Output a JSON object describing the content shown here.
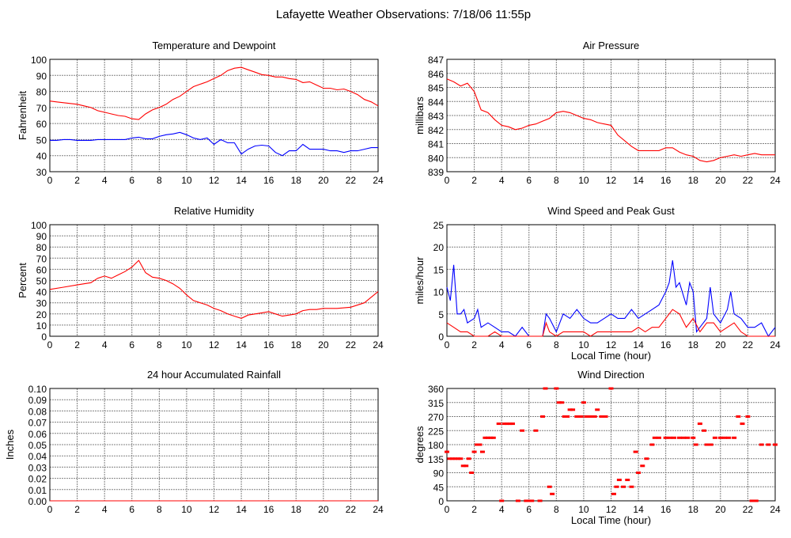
{
  "title": "Lafayette Weather Observations: 7/18/06 11:55p",
  "colors": {
    "red": "#ff0000",
    "blue": "#0000ff",
    "grid": "#808080"
  },
  "chart_data": [
    {
      "id": "temp",
      "type": "line",
      "title": "Temperature and Dewpoint",
      "xlabel": "",
      "ylabel": "Fahrenheit",
      "xlim": [
        0,
        24
      ],
      "ylim": [
        30,
        100
      ],
      "xticks": [
        0,
        2,
        4,
        6,
        8,
        10,
        12,
        14,
        16,
        18,
        20,
        22,
        24
      ],
      "yticks": [
        30,
        40,
        50,
        60,
        70,
        80,
        90,
        100
      ],
      "grid": true,
      "x": [
        0,
        0.5,
        1,
        1.5,
        2,
        2.5,
        3,
        3.5,
        4,
        4.5,
        5,
        5.5,
        6,
        6.5,
        7,
        7.5,
        8,
        8.5,
        9,
        9.5,
        10,
        10.5,
        11,
        11.5,
        12,
        12.5,
        13,
        13.5,
        14,
        14.5,
        15,
        15.5,
        16,
        16.5,
        17,
        17.5,
        18,
        18.5,
        19,
        19.5,
        20,
        20.5,
        21,
        21.5,
        22,
        22.5,
        23,
        23.5,
        24
      ],
      "series": [
        {
          "name": "Temperature",
          "color": "#ff0000",
          "values": [
            74,
            73.5,
            73,
            72.5,
            72,
            71,
            70,
            68,
            67,
            66,
            65,
            64.5,
            63,
            62.5,
            66,
            68.5,
            70,
            72,
            75,
            77,
            80,
            83,
            84.5,
            86,
            88,
            90,
            93,
            94.5,
            95,
            93.5,
            92,
            90.5,
            90,
            89,
            89,
            88,
            87.5,
            85.5,
            86,
            84,
            82,
            82,
            81,
            81.5,
            80,
            78,
            75,
            73.5,
            71
          ]
        },
        {
          "name": "Dewpoint",
          "color": "#0000ff",
          "values": [
            49.5,
            49.5,
            50,
            50,
            49.5,
            49.5,
            49.5,
            50,
            50,
            50,
            50,
            50,
            51,
            51.5,
            50.5,
            50.5,
            52,
            53,
            53.5,
            54.5,
            53,
            51,
            50,
            51,
            47,
            50,
            48,
            48,
            41,
            44,
            46,
            46.5,
            46,
            42,
            40,
            43,
            43,
            47,
            44,
            44,
            44,
            43,
            43,
            42,
            43,
            43,
            44,
            45,
            45
          ]
        }
      ]
    },
    {
      "id": "pressure",
      "type": "line",
      "title": "Air Pressure",
      "xlabel": "",
      "ylabel": "millibars",
      "xlim": [
        0,
        24
      ],
      "ylim": [
        839,
        847
      ],
      "xticks": [
        0,
        2,
        4,
        6,
        8,
        10,
        12,
        14,
        16,
        18,
        20,
        22,
        24
      ],
      "yticks": [
        839,
        840,
        841,
        842,
        843,
        844,
        845,
        846,
        847
      ],
      "grid": true,
      "x": [
        0,
        0.5,
        1,
        1.5,
        2,
        2.5,
        3,
        3.5,
        4,
        4.5,
        5,
        5.5,
        6,
        6.5,
        7,
        7.5,
        8,
        8.5,
        9,
        9.5,
        10,
        10.5,
        11,
        11.5,
        12,
        12.5,
        13,
        13.5,
        14,
        14.5,
        15,
        15.5,
        16,
        16.5,
        17,
        17.5,
        18,
        18.5,
        19,
        19.5,
        20,
        20.5,
        21,
        21.5,
        22,
        22.5,
        23,
        24
      ],
      "series": [
        {
          "name": "Pressure",
          "color": "#ff0000",
          "values": [
            845.6,
            845.4,
            845.1,
            845.3,
            844.7,
            843.4,
            843.2,
            842.7,
            842.3,
            842.2,
            842,
            842.1,
            842.3,
            842.4,
            842.6,
            842.8,
            843.2,
            843.3,
            843.2,
            843,
            842.8,
            842.7,
            842.5,
            842.4,
            842.3,
            841.6,
            841.2,
            840.8,
            840.5,
            840.5,
            840.5,
            840.5,
            840.7,
            840.7,
            840.4,
            840.2,
            840.1,
            839.8,
            839.7,
            839.8,
            840,
            840.1,
            840.2,
            840.1,
            840.2,
            840.3,
            840.2,
            840.2
          ]
        }
      ]
    },
    {
      "id": "humidity",
      "type": "line",
      "title": "Relative Humidity",
      "xlabel": "",
      "ylabel": "Percent",
      "xlim": [
        0,
        24
      ],
      "ylim": [
        0,
        100
      ],
      "xticks": [
        0,
        2,
        4,
        6,
        8,
        10,
        12,
        14,
        16,
        18,
        20,
        22,
        24
      ],
      "yticks": [
        0,
        10,
        20,
        30,
        40,
        50,
        60,
        70,
        80,
        90,
        100
      ],
      "grid": true,
      "x": [
        0,
        1,
        2,
        3,
        3.5,
        4,
        4.5,
        5,
        5.5,
        6,
        6.5,
        7,
        7.5,
        8,
        8.5,
        9,
        9.5,
        10,
        10.5,
        11,
        11.5,
        12,
        12.5,
        13,
        13.5,
        14,
        14.5,
        15,
        15.5,
        16,
        16.5,
        17,
        17.5,
        18,
        18.5,
        19,
        19.5,
        20,
        20.5,
        21,
        22,
        23,
        23.5,
        24
      ],
      "series": [
        {
          "name": "Relative Humidity",
          "color": "#ff0000",
          "values": [
            42,
            44,
            46,
            48,
            52,
            54,
            52,
            55,
            58,
            62,
            68,
            57,
            53,
            52,
            50,
            47,
            43,
            37,
            32,
            30,
            28,
            25,
            23,
            20,
            18,
            16,
            19,
            20,
            21,
            22,
            20,
            18,
            19,
            20,
            23,
            24,
            24,
            25,
            25,
            25,
            26,
            30,
            35,
            40
          ]
        }
      ]
    },
    {
      "id": "wind",
      "type": "line",
      "title": "Wind Speed and Peak Gust",
      "xlabel": "Local Time (hour)",
      "ylabel": "miles/hour",
      "xlim": [
        0,
        24
      ],
      "ylim": [
        0,
        25
      ],
      "xticks": [
        0,
        2,
        4,
        6,
        8,
        10,
        12,
        14,
        16,
        18,
        20,
        22,
        24
      ],
      "yticks": [
        0,
        5,
        10,
        15,
        20,
        25
      ],
      "grid": true,
      "series": [
        {
          "name": "Peak Gust",
          "color": "#0000ff",
          "x": [
            0,
            0.25,
            0.5,
            0.75,
            1,
            1.25,
            1.5,
            2,
            2.25,
            2.5,
            3,
            3.5,
            4,
            4.5,
            5,
            5.5,
            6,
            6.5,
            7,
            7.25,
            7.5,
            8,
            8.5,
            9,
            9.5,
            10,
            10.5,
            11,
            11.5,
            12,
            12.5,
            13,
            13.5,
            14,
            14.5,
            15,
            15.5,
            16,
            16.25,
            16.5,
            16.75,
            17,
            17.5,
            17.75,
            18,
            18.25,
            18.5,
            19,
            19.25,
            19.5,
            20,
            20.5,
            20.75,
            21,
            21.5,
            22,
            22.5,
            23,
            23.5,
            24
          ],
          "values": [
            11,
            8,
            16,
            5,
            5,
            6,
            3,
            4,
            6,
            2,
            3,
            2,
            1,
            1,
            0,
            2,
            0,
            0,
            0,
            5,
            4,
            1,
            5,
            4,
            6,
            4,
            3,
            3,
            4,
            5,
            4,
            4,
            6,
            4,
            5,
            6,
            7,
            10,
            12,
            17,
            11,
            12,
            7,
            12,
            10,
            1,
            2,
            4,
            11,
            5,
            3,
            6,
            10,
            5,
            4,
            2,
            2,
            3,
            0,
            2
          ]
        },
        {
          "name": "Wind Speed",
          "color": "#ff0000",
          "x": [
            0,
            0.5,
            1,
            1.5,
            2,
            3,
            3.5,
            4,
            5,
            6,
            7,
            7.25,
            7.5,
            8,
            8.5,
            9,
            10,
            10.5,
            11,
            12,
            12.5,
            13,
            13.5,
            14,
            14.5,
            15,
            15.5,
            16,
            16.5,
            17,
            17.5,
            18,
            18.5,
            19,
            19.5,
            20,
            20.5,
            21,
            21.5,
            22,
            23,
            24
          ],
          "values": [
            3,
            2,
            1,
            1,
            0,
            0,
            1,
            0,
            0,
            0,
            0,
            3,
            1,
            0,
            1,
            1,
            1,
            0,
            1,
            1,
            1,
            1,
            1,
            2,
            1,
            2,
            2,
            4,
            6,
            5,
            2,
            4,
            1,
            3,
            3,
            1,
            2,
            3,
            1,
            0,
            0,
            0
          ]
        }
      ]
    },
    {
      "id": "rain",
      "type": "line",
      "title": "24 hour Accumulated Rainfall",
      "xlabel": "",
      "ylabel": "Inches",
      "xlim": [
        0,
        24
      ],
      "ylim": [
        0,
        0.1
      ],
      "xticks": [
        0,
        2,
        4,
        6,
        8,
        10,
        12,
        14,
        16,
        18,
        20,
        22,
        24
      ],
      "yticks": [
        "0.00",
        "0.01",
        "0.02",
        "0.03",
        "0.04",
        "0.05",
        "0.06",
        "0.07",
        "0.08",
        "0.09",
        "0.10"
      ],
      "grid": true,
      "x": [
        0,
        24
      ],
      "series": [
        {
          "name": "Rainfall",
          "color": "#ff0000",
          "values": [
            0,
            0
          ]
        }
      ]
    },
    {
      "id": "direction",
      "type": "scatter",
      "title": "Wind Direction",
      "xlabel": "Local Time (hour)",
      "ylabel": "degrees",
      "xlim": [
        0,
        24
      ],
      "ylim": [
        0,
        360
      ],
      "xticks": [
        0,
        2,
        4,
        6,
        8,
        10,
        12,
        14,
        16,
        18,
        20,
        22,
        24
      ],
      "yticks": [
        0,
        45,
        90,
        135,
        180,
        225,
        270,
        315,
        360
      ],
      "grid": true,
      "series": [
        {
          "name": "Direction",
          "color": "#ff0000",
          "x": [
            0,
            0.2,
            0.4,
            0.6,
            0.8,
            1,
            1.2,
            1.4,
            1.6,
            1.8,
            2,
            2.2,
            2.4,
            2.6,
            2.8,
            3,
            3.2,
            3.4,
            3.8,
            4,
            4.2,
            4.4,
            4.6,
            4.8,
            5.2,
            5.5,
            5.8,
            6,
            6.2,
            6.5,
            6.8,
            7,
            7.2,
            7.5,
            7.7,
            8,
            8.2,
            8.4,
            8.6,
            8.8,
            9,
            9.2,
            9.5,
            9.8,
            10,
            10.2,
            10.5,
            10.8,
            11,
            11.3,
            11.6,
            12,
            12.2,
            12.4,
            12.6,
            12.9,
            13.2,
            13.5,
            13.8,
            14,
            14.3,
            14.6,
            15,
            15.2,
            15.5,
            16,
            16.3,
            16.6,
            17,
            17.3,
            17.6,
            18,
            18.2,
            18.5,
            18.8,
            19,
            19.3,
            19.6,
            20,
            20.3,
            20.6,
            21,
            21.3,
            21.6,
            22,
            22.3,
            22.6,
            23,
            23.5,
            24
          ],
          "values": [
            157,
            135,
            135,
            135,
            135,
            135,
            112,
            112,
            135,
            90,
            157,
            180,
            180,
            157,
            202,
            202,
            202,
            202,
            247,
            0,
            247,
            247,
            247,
            247,
            0,
            225,
            0,
            0,
            0,
            225,
            0,
            270,
            360,
            45,
            22,
            360,
            315,
            315,
            270,
            270,
            292,
            292,
            270,
            270,
            315,
            270,
            270,
            270,
            292,
            270,
            270,
            360,
            22,
            45,
            67,
            45,
            67,
            45,
            157,
            90,
            112,
            135,
            180,
            202,
            202,
            202,
            202,
            202,
            202,
            202,
            202,
            202,
            180,
            247,
            225,
            180,
            180,
            202,
            202,
            202,
            202,
            202,
            270,
            247,
            270,
            0,
            0,
            180,
            180,
            180
          ]
        }
      ]
    }
  ]
}
